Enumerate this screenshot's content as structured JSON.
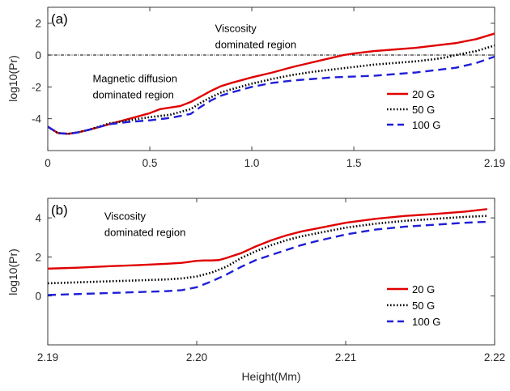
{
  "chart_data": [
    {
      "type": "line",
      "panel_label": "(a)",
      "ylabel": "log10(Pr)",
      "xlabel": "",
      "xlim": [
        0,
        2.19
      ],
      "ylim": [
        -6,
        3
      ],
      "xticks": [
        0,
        0.5,
        1.0,
        1.5,
        2.19
      ],
      "xtick_labels": [
        "0",
        "0.5",
        "1.0",
        "1.5",
        "2.19"
      ],
      "yticks": [
        -4,
        -2,
        0,
        2
      ],
      "ytick_labels": [
        "-4",
        "-2",
        "0",
        "2"
      ],
      "reference_line_y": 0,
      "annotations": [
        {
          "lines": [
            "Viscosity",
            "dominated region"
          ],
          "x": 0.82,
          "y": 1.45
        },
        {
          "lines": [
            "Magnetic diffusion",
            "dominated region"
          ],
          "x": 0.22,
          "y": -1.7
        }
      ],
      "legend": "right",
      "series": [
        {
          "name": "20 G",
          "color": "#e00000",
          "dash": "solid",
          "x": [
            0,
            0.05,
            0.1,
            0.15,
            0.2,
            0.3,
            0.4,
            0.5,
            0.55,
            0.65,
            0.7,
            0.75,
            0.8,
            0.85,
            0.9,
            1.0,
            1.1,
            1.2,
            1.3,
            1.4,
            1.45,
            1.5,
            1.6,
            1.7,
            1.8,
            1.9,
            2.0,
            2.1,
            2.19
          ],
          "y": [
            -4.5,
            -4.9,
            -4.95,
            -4.85,
            -4.7,
            -4.35,
            -4.0,
            -3.65,
            -3.4,
            -3.2,
            -2.95,
            -2.6,
            -2.25,
            -1.95,
            -1.75,
            -1.4,
            -1.1,
            -0.75,
            -0.45,
            -0.15,
            0.0,
            0.1,
            0.25,
            0.35,
            0.45,
            0.6,
            0.75,
            1.0,
            1.35
          ]
        },
        {
          "name": "50 G",
          "color": "#000000",
          "dash": "dot",
          "x": [
            0,
            0.05,
            0.1,
            0.15,
            0.2,
            0.3,
            0.4,
            0.5,
            0.6,
            0.7,
            0.75,
            0.8,
            0.85,
            0.9,
            1.0,
            1.1,
            1.2,
            1.3,
            1.4,
            1.5,
            1.6,
            1.7,
            1.8,
            1.9,
            1.95,
            2.0,
            2.1,
            2.19
          ],
          "y": [
            -4.5,
            -4.9,
            -4.95,
            -4.85,
            -4.7,
            -4.3,
            -4.1,
            -3.9,
            -3.75,
            -3.4,
            -3.0,
            -2.65,
            -2.35,
            -2.15,
            -1.8,
            -1.5,
            -1.25,
            -1.05,
            -0.9,
            -0.75,
            -0.6,
            -0.5,
            -0.4,
            -0.25,
            -0.15,
            0.0,
            0.25,
            0.6
          ]
        },
        {
          "name": "100 G",
          "color": "#1f1fd6",
          "dash": "dash",
          "x": [
            0,
            0.05,
            0.1,
            0.15,
            0.2,
            0.3,
            0.4,
            0.5,
            0.6,
            0.7,
            0.75,
            0.8,
            0.85,
            0.9,
            1.0,
            1.1,
            1.2,
            1.3,
            1.4,
            1.5,
            1.6,
            1.7,
            1.8,
            1.9,
            2.0,
            2.1,
            2.19
          ],
          "y": [
            -4.5,
            -4.9,
            -4.95,
            -4.85,
            -4.7,
            -4.35,
            -4.2,
            -4.1,
            -3.95,
            -3.7,
            -3.25,
            -2.85,
            -2.55,
            -2.35,
            -2.0,
            -1.75,
            -1.6,
            -1.5,
            -1.4,
            -1.35,
            -1.3,
            -1.2,
            -1.1,
            -0.95,
            -0.8,
            -0.5,
            -0.1
          ]
        }
      ]
    },
    {
      "type": "line",
      "panel_label": "(b)",
      "ylabel": "log10(Pr)",
      "xlabel": "Height(Mm)",
      "xlim": [
        2.19,
        2.22
      ],
      "ylim": [
        -2.5,
        5
      ],
      "xticks": [
        2.19,
        2.2,
        2.21,
        2.22
      ],
      "xtick_labels": [
        "2.19",
        "2.20",
        "2.21",
        "2.22"
      ],
      "yticks": [
        0,
        2,
        4
      ],
      "ytick_labels": [
        "0",
        "2",
        "4"
      ],
      "annotations": [
        {
          "lines": [
            "Viscosity",
            "dominated region"
          ],
          "x": 2.1938,
          "y": 3.9
        }
      ],
      "legend": "right",
      "series": [
        {
          "name": "20 G",
          "color": "#e00000",
          "dash": "solid",
          "x": [
            2.19,
            2.192,
            2.194,
            2.196,
            2.198,
            2.199,
            2.2,
            2.2005,
            2.201,
            2.2015,
            2.202,
            2.203,
            2.204,
            2.205,
            2.206,
            2.207,
            2.208,
            2.21,
            2.212,
            2.214,
            2.216,
            2.218,
            2.2195
          ],
          "y": [
            1.4,
            1.45,
            1.52,
            1.58,
            1.65,
            1.7,
            1.8,
            1.82,
            1.82,
            1.84,
            1.95,
            2.2,
            2.55,
            2.85,
            3.1,
            3.3,
            3.45,
            3.75,
            3.95,
            4.1,
            4.2,
            4.32,
            4.45
          ]
        },
        {
          "name": "50 G",
          "color": "#000000",
          "dash": "dot",
          "x": [
            2.19,
            2.192,
            2.194,
            2.196,
            2.198,
            2.199,
            2.2,
            2.201,
            2.202,
            2.203,
            2.204,
            2.205,
            2.206,
            2.207,
            2.208,
            2.21,
            2.212,
            2.214,
            2.216,
            2.218,
            2.2195
          ],
          "y": [
            0.65,
            0.7,
            0.75,
            0.8,
            0.85,
            0.9,
            1.0,
            1.2,
            1.5,
            1.95,
            2.3,
            2.6,
            2.85,
            3.05,
            3.2,
            3.5,
            3.7,
            3.85,
            3.95,
            4.05,
            4.1
          ]
        },
        {
          "name": "100 G",
          "color": "#1f1fd6",
          "dash": "dash",
          "x": [
            2.19,
            2.192,
            2.194,
            2.196,
            2.198,
            2.199,
            2.2,
            2.201,
            2.202,
            2.203,
            2.204,
            2.205,
            2.206,
            2.207,
            2.208,
            2.21,
            2.212,
            2.214,
            2.216,
            2.218,
            2.2195
          ],
          "y": [
            0.05,
            0.1,
            0.15,
            0.2,
            0.25,
            0.3,
            0.45,
            0.75,
            1.1,
            1.5,
            1.85,
            2.1,
            2.35,
            2.6,
            2.8,
            3.15,
            3.4,
            3.55,
            3.65,
            3.75,
            3.8
          ]
        }
      ]
    }
  ]
}
